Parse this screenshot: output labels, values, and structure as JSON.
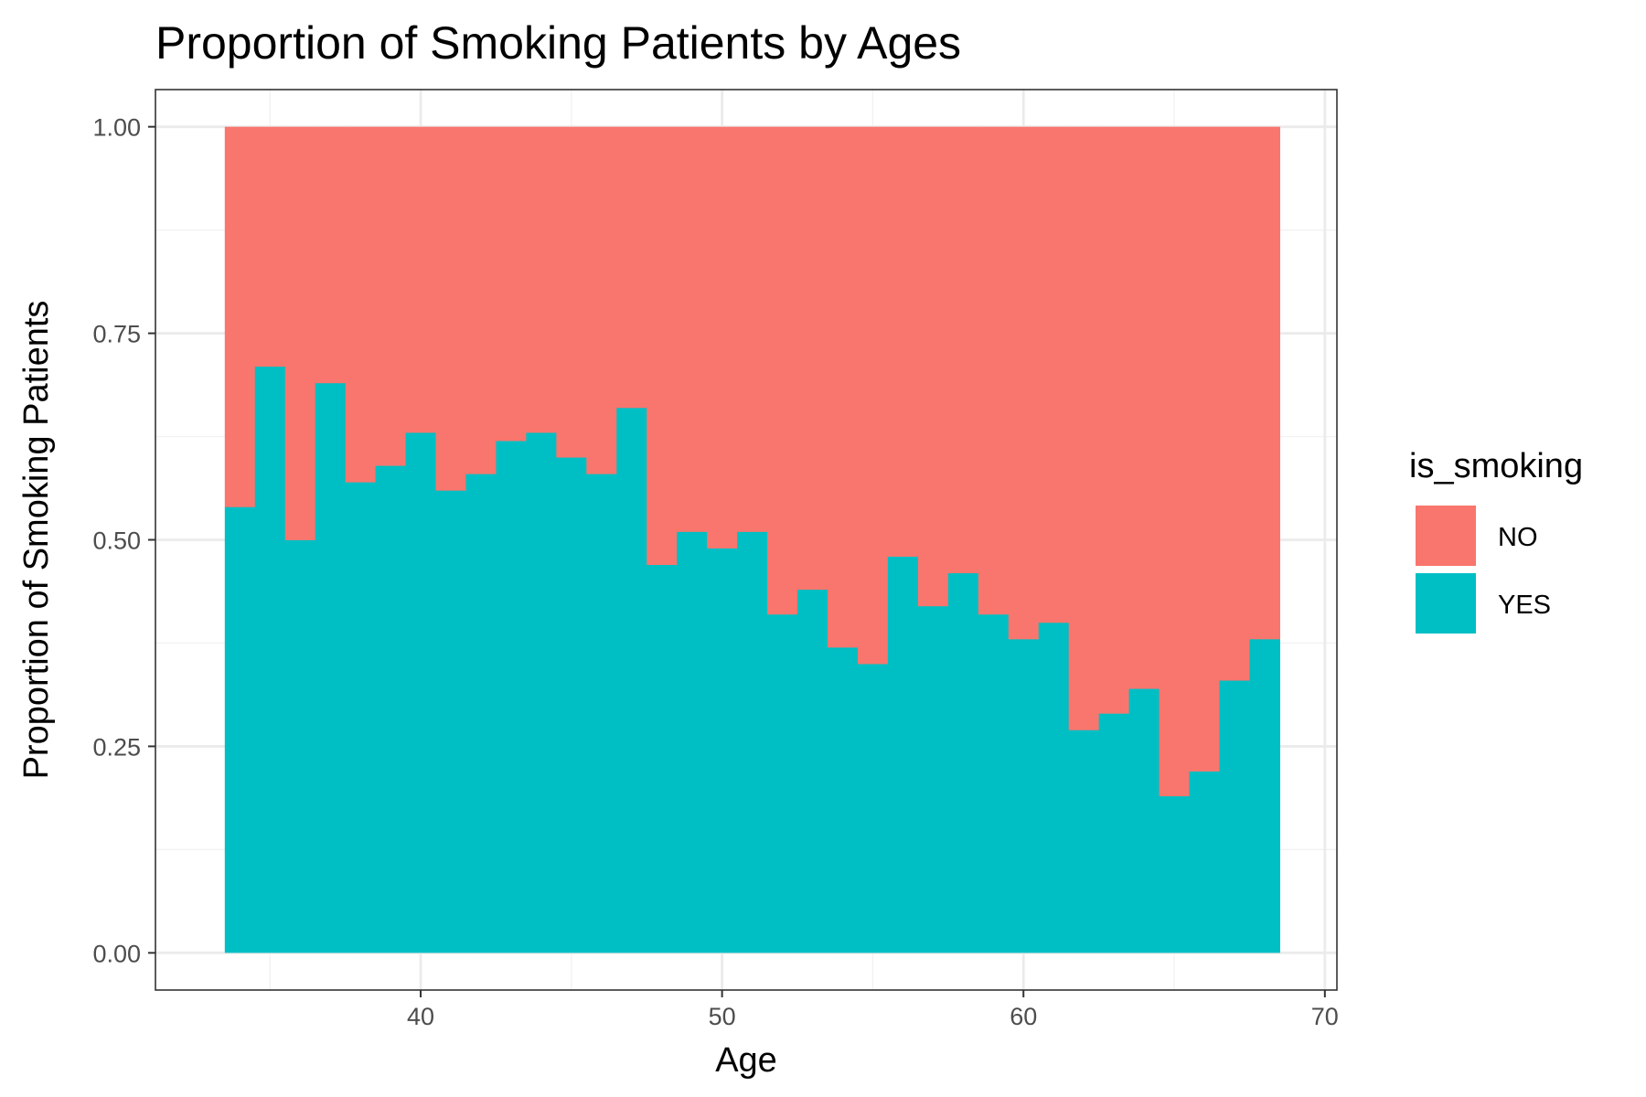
{
  "chart_data": {
    "type": "bar",
    "stacked": "fill",
    "title": "Proportion of Smoking Patients by Ages",
    "xlabel": "Age",
    "ylabel": "Proportion of Smoking Patients",
    "xlim": [
      31.2,
      70.4
    ],
    "ylim": [
      -0.045,
      1.045
    ],
    "x_ticks": [
      40,
      50,
      60,
      70
    ],
    "x_tick_labels": [
      "40",
      "50",
      "60",
      "70"
    ],
    "y_ticks": [
      0,
      0.25,
      0.5,
      0.75,
      1.0
    ],
    "y_tick_labels": [
      "0.00",
      "0.25",
      "0.50",
      "0.75",
      "1.00"
    ],
    "grid": true,
    "legend": {
      "title": "is_smoking",
      "position": "right"
    },
    "bin_width": 1,
    "x": [
      34,
      35,
      36,
      37,
      38,
      39,
      40,
      41,
      42,
      43,
      44,
      45,
      46,
      47,
      48,
      49,
      50,
      51,
      52,
      53,
      54,
      55,
      56,
      57,
      58,
      59,
      60,
      61,
      62,
      63,
      64,
      65,
      66,
      67,
      68
    ],
    "series": [
      {
        "name": "NO",
        "color": "#F8766D",
        "values": [
          0.46,
          0.29,
          0.5,
          0.31,
          0.43,
          0.41,
          0.37,
          0.44,
          0.42,
          0.38,
          0.37,
          0.4,
          0.42,
          0.34,
          0.53,
          0.49,
          0.51,
          0.49,
          0.59,
          0.56,
          0.63,
          0.65,
          0.52,
          0.58,
          0.54,
          0.59,
          0.62,
          0.6,
          0.73,
          0.71,
          0.68,
          0.81,
          0.78,
          0.67,
          0.62
        ]
      },
      {
        "name": "YES",
        "color": "#00BFC4",
        "values": [
          0.54,
          0.71,
          0.5,
          0.69,
          0.57,
          0.59,
          0.63,
          0.56,
          0.58,
          0.62,
          0.63,
          0.6,
          0.58,
          0.66,
          0.47,
          0.51,
          0.49,
          0.51,
          0.41,
          0.44,
          0.37,
          0.35,
          0.48,
          0.42,
          0.46,
          0.41,
          0.38,
          0.4,
          0.27,
          0.29,
          0.32,
          0.19,
          0.22,
          0.33,
          0.38
        ]
      }
    ]
  }
}
